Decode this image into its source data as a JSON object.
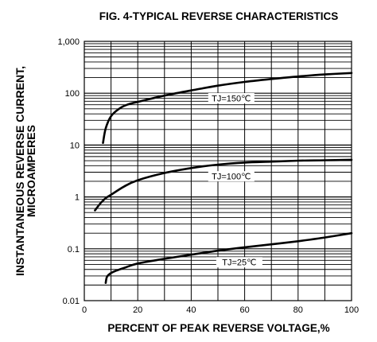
{
  "chart_data": {
    "type": "line",
    "title": "FIG. 4-TYPICAL REVERSE CHARACTERISTICS",
    "xlabel": "PERCENT OF PEAK REVERSE VOLTAGE,%",
    "ylabel": [
      "INSTANTANEOUS REVERSE CURRENT,",
      "MICROAMPERES"
    ],
    "xlim": [
      0,
      100
    ],
    "ylim": [
      0.01,
      1000
    ],
    "yscale": "log",
    "grid": true,
    "x_ticks": [
      0,
      20,
      40,
      60,
      80,
      100
    ],
    "x_tick_labels": [
      "0",
      "20",
      "40",
      "60",
      "80",
      "100"
    ],
    "y_ticks": [
      0.01,
      0.1,
      1,
      10,
      100,
      1000
    ],
    "y_tick_labels": [
      "0.01",
      "0.1",
      "1",
      "10",
      "100",
      "1,000"
    ],
    "series": [
      {
        "name": "TJ=150℃",
        "label_at": [
          55,
          80
        ],
        "x": [
          7,
          8,
          10,
          13,
          16,
          20,
          30,
          40,
          50,
          60,
          70,
          80,
          90,
          100
        ],
        "y": [
          11,
          21,
          36,
          50,
          60,
          68,
          90,
          113,
          140,
          165,
          188,
          210,
          230,
          245
        ]
      },
      {
        "name": "TJ=100℃",
        "label_at": [
          55,
          2.5
        ],
        "x": [
          4,
          6,
          8,
          10,
          15,
          20,
          30,
          40,
          50,
          60,
          70,
          80,
          90,
          100
        ],
        "y": [
          0.55,
          0.75,
          0.95,
          1.1,
          1.6,
          2.1,
          2.9,
          3.6,
          4.2,
          4.6,
          4.8,
          5.0,
          5.1,
          5.2
        ]
      },
      {
        "name": "TJ=25℃",
        "label_at": [
          58,
          0.055
        ],
        "x": [
          8,
          8.5,
          10,
          12,
          15,
          20,
          30,
          40,
          50,
          60,
          70,
          80,
          90,
          100
        ],
        "y": [
          0.022,
          0.029,
          0.034,
          0.038,
          0.043,
          0.052,
          0.064,
          0.077,
          0.092,
          0.107,
          0.122,
          0.14,
          0.165,
          0.2
        ]
      }
    ]
  }
}
